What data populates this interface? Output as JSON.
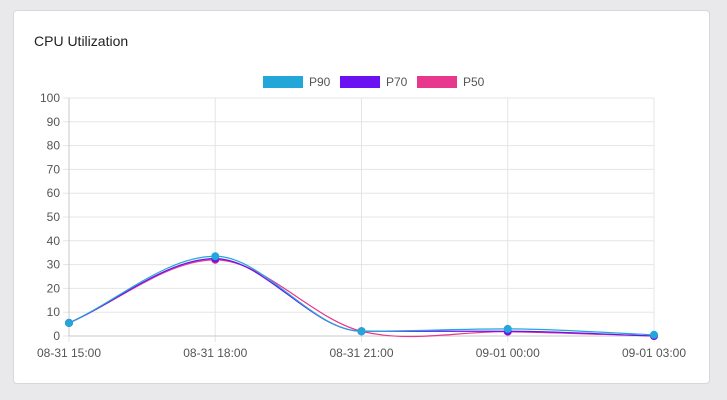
{
  "card": {
    "title": "CPU Utilization"
  },
  "chart_data": {
    "type": "line",
    "title": "",
    "xlabel": "",
    "ylabel": "",
    "x": [
      "08-31 15:00",
      "08-31 18:00",
      "08-31 21:00",
      "09-01 00:00",
      "09-01 03:00"
    ],
    "ylim": [
      0,
      100
    ],
    "yticks": [
      0,
      10,
      20,
      30,
      40,
      50,
      60,
      70,
      80,
      90,
      100
    ],
    "grid": true,
    "legend_position": "top-center",
    "series": [
      {
        "name": "P90",
        "color": "#22a7d8",
        "values": [
          5.5,
          33.5,
          2.0,
          3.0,
          0.5
        ]
      },
      {
        "name": "P70",
        "color": "#6a12f2",
        "values": [
          5.5,
          32.5,
          2.0,
          2.0,
          0.0
        ]
      },
      {
        "name": "P50",
        "color": "#e8388e",
        "values": [
          5.5,
          32.0,
          2.0,
          1.8,
          0.0
        ]
      }
    ]
  }
}
